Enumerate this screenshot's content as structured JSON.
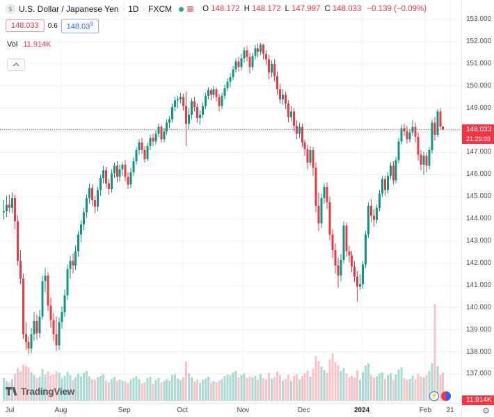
{
  "legend": {
    "title": "U.S. Dollar / Japanese Yen",
    "sep": "·",
    "timeframe": "1D",
    "exchange": "FXCM",
    "logo_glyph": "$",
    "ohlc": [
      {
        "k": "O",
        "v": "148.172"
      },
      {
        "k": "H",
        "v": "148.172"
      },
      {
        "k": "L",
        "v": "147.997"
      },
      {
        "k": "C",
        "v": "148.033"
      }
    ],
    "change": "−0.139 (−0.09%)"
  },
  "trade": {
    "sell": "148.033",
    "spread": "0.6",
    "buy_main": "148.03",
    "buy_sup": "9"
  },
  "volume_row": {
    "label": "Vol",
    "value": "11.914K"
  },
  "price_axis": {
    "tick_labels": [
      "153.000",
      "152.000",
      "151.000",
      "150.000",
      "149.000",
      "148.000",
      "147.000",
      "146.000",
      "145.000",
      "144.000",
      "143.000",
      "142.000",
      "141.000",
      "140.000",
      "139.000",
      "138.000",
      "137.000"
    ],
    "last_price_label": "148.033",
    "countdown": "21:29:03",
    "volume_label": "11.914K"
  },
  "footer": {
    "logo_text": "TradingView"
  },
  "icons": {
    "gear": "⚙",
    "bolt": "⚡"
  },
  "colors": {
    "up": "#089981",
    "down": "#f23645",
    "vol_up": "rgba(8,153,129,0.35)",
    "vol_down": "rgba(242,54,69,0.30)",
    "grid": "#eef1f6",
    "blue": "#2962ff"
  },
  "chart_data": {
    "type": "candlestick",
    "title": "U.S. Dollar / Japanese Yen · 1D · FXCM",
    "y_axis": {
      "min": 137,
      "max": 153,
      "step": 1,
      "side": "right"
    },
    "last": {
      "o": 148.172,
      "h": 148.172,
      "l": 147.997,
      "c": 148.033,
      "change": -0.139,
      "change_pct": -0.09
    },
    "volume_last_k": 11.914,
    "time_labels": [
      {
        "text": "Jul",
        "i": 0
      },
      {
        "text": "Aug",
        "i": 21
      },
      {
        "text": "Sep",
        "i": 44
      },
      {
        "text": "Oct",
        "i": 65
      },
      {
        "text": "Nov",
        "i": 87
      },
      {
        "text": "Dec",
        "i": 109
      },
      {
        "text": "2024",
        "i": 130,
        "bold": true
      },
      {
        "text": "Feb",
        "i": 153
      },
      {
        "text": "21",
        "i": 162
      }
    ],
    "fields": [
      "open",
      "high",
      "low",
      "close",
      "volume_k"
    ],
    "candles": [
      [
        144.3,
        144.85,
        143.95,
        144.35,
        9.5
      ],
      [
        144.35,
        145.05,
        144.1,
        144.65,
        8.2
      ],
      [
        144.65,
        145.1,
        144.3,
        144.5,
        7.8
      ],
      [
        144.5,
        145.2,
        144.25,
        144.95,
        9.1
      ],
      [
        144.95,
        145.1,
        143.55,
        143.9,
        11.4
      ],
      [
        143.9,
        144.15,
        141.9,
        142.1,
        13.8
      ],
      [
        142.1,
        142.6,
        141.05,
        141.3,
        12.5
      ],
      [
        141.3,
        141.55,
        138.6,
        138.8,
        15.2
      ],
      [
        138.8,
        139.35,
        138.1,
        138.45,
        14.6
      ],
      [
        138.45,
        138.7,
        137.9,
        138.15,
        13.9
      ],
      [
        138.15,
        139.1,
        137.95,
        138.8,
        12.1
      ],
      [
        138.8,
        139.8,
        138.5,
        139.4,
        10.8
      ],
      [
        139.4,
        139.7,
        138.55,
        138.85,
        9.6
      ],
      [
        138.85,
        139.9,
        138.65,
        139.6,
        10.2
      ],
      [
        139.6,
        141.45,
        139.45,
        141.2,
        13.4
      ],
      [
        141.2,
        141.8,
        140.7,
        141.45,
        11.0
      ],
      [
        141.45,
        141.6,
        139.85,
        140.1,
        12.3
      ],
      [
        140.1,
        140.45,
        139.1,
        139.45,
        10.7
      ],
      [
        139.45,
        139.75,
        138.5,
        138.8,
        11.2
      ],
      [
        138.8,
        139.6,
        138.05,
        138.3,
        12.6
      ],
      [
        138.3,
        139.55,
        138.1,
        139.35,
        11.8
      ],
      [
        139.35,
        140.05,
        139.05,
        139.8,
        9.4
      ],
      [
        139.8,
        140.8,
        139.6,
        140.55,
        10.6
      ],
      [
        140.55,
        141.95,
        140.35,
        141.75,
        12.2
      ],
      [
        141.75,
        142.35,
        141.3,
        142.1,
        10.9
      ],
      [
        142.1,
        142.45,
        141.55,
        141.9,
        8.7
      ],
      [
        141.9,
        142.8,
        141.7,
        142.55,
        9.8
      ],
      [
        142.55,
        143.45,
        142.3,
        143.3,
        11.3
      ],
      [
        143.3,
        143.95,
        142.95,
        143.75,
        10.1
      ],
      [
        143.75,
        144.5,
        143.5,
        144.3,
        11.7
      ],
      [
        144.3,
        145.1,
        144.05,
        144.95,
        12.4
      ],
      [
        144.95,
        145.6,
        144.7,
        145.4,
        10.3
      ],
      [
        145.4,
        145.55,
        144.6,
        144.85,
        9.2
      ],
      [
        144.85,
        145.05,
        144.25,
        144.55,
        8.8
      ],
      [
        144.55,
        145.45,
        144.35,
        145.3,
        9.9
      ],
      [
        145.3,
        146.0,
        145.05,
        145.85,
        10.5
      ],
      [
        145.85,
        146.4,
        145.6,
        146.2,
        11.1
      ],
      [
        146.2,
        146.35,
        145.4,
        145.6,
        8.5
      ],
      [
        145.6,
        145.8,
        145.1,
        145.35,
        7.9
      ],
      [
        145.35,
        146.25,
        145.2,
        146.05,
        9.3
      ],
      [
        146.05,
        146.55,
        145.85,
        146.4,
        10.0
      ],
      [
        146.4,
        146.6,
        145.65,
        145.9,
        8.4
      ],
      [
        145.9,
        146.45,
        145.7,
        146.25,
        9.0
      ],
      [
        146.25,
        146.55,
        145.95,
        146.45,
        8.6
      ],
      [
        146.45,
        146.65,
        145.7,
        145.9,
        8.3
      ],
      [
        145.9,
        146.1,
        145.35,
        145.55,
        7.6
      ],
      [
        145.55,
        146.3,
        145.4,
        146.1,
        8.9
      ],
      [
        146.1,
        146.8,
        145.95,
        146.6,
        9.7
      ],
      [
        146.6,
        147.25,
        146.45,
        147.1,
        10.4
      ],
      [
        147.1,
        147.6,
        146.9,
        147.45,
        9.1
      ],
      [
        147.45,
        147.65,
        146.95,
        147.1,
        7.4
      ],
      [
        147.1,
        147.3,
        146.55,
        146.7,
        8.0
      ],
      [
        146.7,
        147.45,
        146.6,
        147.3,
        9.5
      ],
      [
        147.3,
        147.8,
        147.1,
        147.65,
        10.2
      ],
      [
        147.65,
        147.85,
        147.3,
        147.5,
        7.2
      ],
      [
        147.5,
        148.0,
        147.35,
        147.85,
        8.8
      ],
      [
        147.85,
        148.3,
        147.7,
        148.15,
        9.6
      ],
      [
        148.15,
        148.25,
        147.45,
        147.6,
        7.8
      ],
      [
        147.6,
        148.1,
        147.45,
        147.95,
        8.2
      ],
      [
        147.95,
        148.5,
        147.8,
        148.35,
        9.0
      ],
      [
        148.35,
        148.65,
        148.1,
        148.5,
        8.5
      ],
      [
        148.5,
        149.2,
        148.35,
        149.05,
        10.8
      ],
      [
        149.05,
        149.5,
        148.85,
        149.35,
        11.2
      ],
      [
        149.35,
        149.55,
        149.0,
        149.4,
        9.3
      ],
      [
        149.4,
        149.7,
        149.2,
        149.5,
        8.7
      ],
      [
        149.5,
        149.65,
        148.9,
        149.1,
        9.9
      ],
      [
        149.1,
        149.75,
        147.3,
        148.3,
        16.5
      ],
      [
        148.3,
        149.0,
        148.05,
        148.7,
        11.4
      ],
      [
        148.7,
        149.45,
        148.5,
        149.3,
        9.8
      ],
      [
        149.3,
        149.5,
        148.85,
        149.05,
        8.1
      ],
      [
        149.05,
        149.2,
        148.35,
        148.55,
        8.9
      ],
      [
        148.55,
        148.9,
        148.25,
        148.7,
        7.5
      ],
      [
        148.7,
        149.25,
        148.55,
        149.1,
        8.8
      ],
      [
        149.1,
        149.7,
        148.95,
        149.55,
        9.4
      ],
      [
        149.55,
        149.95,
        149.4,
        149.8,
        10.1
      ],
      [
        149.8,
        149.9,
        149.35,
        149.6,
        7.7
      ],
      [
        149.6,
        150.0,
        149.45,
        149.85,
        8.3
      ],
      [
        149.85,
        149.95,
        149.3,
        149.5,
        7.9
      ],
      [
        149.5,
        149.65,
        148.85,
        149.1,
        8.6
      ],
      [
        149.1,
        149.7,
        148.95,
        149.55,
        9.2
      ],
      [
        149.55,
        150.05,
        149.4,
        149.9,
        10.5
      ],
      [
        149.9,
        150.35,
        149.75,
        150.2,
        11.0
      ],
      [
        150.2,
        150.55,
        149.95,
        150.4,
        10.7
      ],
      [
        150.4,
        150.9,
        150.25,
        150.75,
        11.9
      ],
      [
        150.75,
        151.25,
        150.6,
        151.1,
        12.6
      ],
      [
        151.1,
        151.3,
        150.65,
        150.85,
        9.8
      ],
      [
        150.85,
        151.45,
        150.7,
        151.25,
        10.9
      ],
      [
        151.25,
        151.75,
        151.05,
        151.6,
        11.5
      ],
      [
        151.6,
        151.8,
        151.1,
        151.3,
        9.7
      ],
      [
        151.3,
        151.5,
        150.55,
        150.85,
        10.3
      ],
      [
        150.85,
        151.5,
        150.7,
        151.35,
        9.9
      ],
      [
        151.35,
        151.85,
        151.2,
        151.7,
        10.6
      ],
      [
        151.7,
        151.9,
        151.3,
        151.55,
        8.8
      ],
      [
        151.55,
        151.95,
        151.4,
        151.85,
        11.2
      ],
      [
        151.85,
        151.9,
        151.2,
        151.45,
        9.5
      ],
      [
        151.45,
        151.6,
        150.95,
        151.2,
        8.9
      ],
      [
        151.2,
        151.4,
        150.3,
        150.6,
        11.8
      ],
      [
        150.6,
        151.15,
        150.4,
        151.0,
        9.4
      ],
      [
        151.0,
        151.2,
        150.2,
        150.45,
        10.1
      ],
      [
        150.45,
        150.65,
        149.6,
        149.85,
        12.3
      ],
      [
        149.85,
        150.1,
        149.2,
        149.4,
        10.8
      ],
      [
        149.4,
        149.85,
        149.15,
        149.6,
        8.6
      ],
      [
        149.6,
        149.75,
        148.95,
        149.2,
        9.2
      ],
      [
        149.2,
        149.35,
        148.35,
        148.6,
        10.9
      ],
      [
        148.6,
        149.1,
        148.4,
        148.85,
        8.4
      ],
      [
        148.85,
        149.0,
        147.95,
        148.2,
        10.5
      ],
      [
        148.2,
        148.45,
        147.6,
        147.85,
        11.1
      ],
      [
        147.85,
        148.35,
        147.65,
        148.15,
        9.0
      ],
      [
        148.15,
        148.3,
        147.25,
        147.45,
        10.4
      ],
      [
        147.45,
        147.6,
        146.85,
        147.15,
        11.6
      ],
      [
        147.15,
        147.35,
        146.25,
        146.55,
        12.8
      ],
      [
        146.55,
        147.3,
        146.4,
        147.1,
        10.2
      ],
      [
        147.1,
        147.25,
        145.95,
        146.3,
        13.5
      ],
      [
        146.3,
        146.55,
        144.3,
        144.6,
        18.9
      ],
      [
        144.6,
        145.2,
        143.45,
        143.8,
        16.7
      ],
      [
        143.8,
        145.15,
        143.6,
        144.95,
        14.3
      ],
      [
        144.95,
        145.6,
        144.7,
        145.45,
        12.9
      ],
      [
        145.45,
        145.65,
        144.45,
        144.75,
        11.8
      ],
      [
        144.75,
        145.0,
        143.05,
        143.3,
        17.4
      ],
      [
        143.3,
        143.55,
        142.25,
        142.6,
        19.8
      ],
      [
        142.6,
        142.9,
        141.55,
        141.9,
        16.2
      ],
      [
        141.9,
        142.25,
        140.9,
        141.45,
        14.9
      ],
      [
        141.45,
        142.4,
        141.2,
        142.15,
        12.4
      ],
      [
        142.15,
        143.9,
        142.0,
        143.7,
        13.7
      ],
      [
        143.7,
        143.85,
        142.3,
        142.55,
        11.5
      ],
      [
        142.55,
        142.8,
        142.05,
        142.35,
        9.8
      ],
      [
        142.35,
        142.55,
        141.6,
        141.85,
        10.6
      ],
      [
        141.85,
        142.1,
        141.15,
        141.4,
        9.9
      ],
      [
        141.4,
        141.65,
        140.25,
        140.95,
        12.7
      ],
      [
        140.95,
        141.5,
        140.8,
        141.05,
        8.9
      ],
      [
        141.05,
        142.1,
        140.85,
        141.95,
        12.1
      ],
      [
        141.95,
        143.45,
        141.8,
        143.3,
        14.8
      ],
      [
        143.3,
        144.75,
        143.15,
        144.6,
        15.6
      ],
      [
        144.6,
        144.9,
        143.85,
        144.15,
        10.9
      ],
      [
        144.15,
        144.45,
        143.65,
        143.95,
        9.7
      ],
      [
        143.95,
        144.65,
        143.8,
        144.5,
        10.3
      ],
      [
        144.5,
        145.3,
        144.35,
        145.15,
        11.4
      ],
      [
        145.15,
        145.95,
        145.0,
        145.8,
        12.0
      ],
      [
        145.8,
        145.95,
        145.05,
        145.3,
        9.1
      ],
      [
        145.3,
        146.1,
        145.15,
        145.95,
        10.8
      ],
      [
        145.95,
        146.55,
        145.8,
        146.4,
        11.6
      ],
      [
        146.4,
        146.6,
        145.55,
        145.75,
        8.8
      ],
      [
        145.75,
        146.8,
        145.6,
        146.65,
        11.0
      ],
      [
        146.65,
        147.65,
        146.5,
        147.5,
        13.2
      ],
      [
        147.5,
        148.25,
        147.35,
        148.1,
        14.1
      ],
      [
        148.1,
        148.3,
        147.75,
        147.95,
        9.4
      ],
      [
        147.95,
        148.2,
        147.4,
        147.6,
        8.7
      ],
      [
        147.6,
        148.05,
        147.45,
        147.9,
        9.2
      ],
      [
        147.9,
        148.45,
        147.75,
        148.15,
        10.6
      ],
      [
        148.15,
        148.35,
        147.45,
        147.7,
        9.0
      ],
      [
        147.7,
        147.9,
        146.65,
        146.9,
        11.3
      ],
      [
        146.9,
        147.1,
        146.2,
        146.45,
        10.1
      ],
      [
        146.45,
        147.05,
        146.0,
        146.85,
        9.8
      ],
      [
        146.85,
        147.0,
        146.1,
        146.4,
        10.7
      ],
      [
        146.4,
        147.25,
        146.25,
        147.1,
        12.5
      ],
      [
        147.1,
        148.5,
        146.95,
        148.35,
        15.8
      ],
      [
        148.35,
        148.6,
        147.55,
        147.8,
        40.5
      ],
      [
        147.8,
        148.95,
        147.7,
        148.85,
        14.6
      ],
      [
        148.85,
        149.0,
        148.05,
        148.17,
        10.9
      ],
      [
        148.172,
        148.172,
        147.997,
        148.033,
        11.914
      ]
    ]
  }
}
